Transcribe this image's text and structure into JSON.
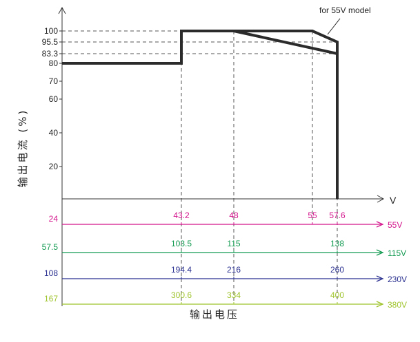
{
  "chart_data": {
    "type": "line",
    "title": "",
    "ylabel": "输出电流 (%)",
    "xlabel": "输出电压",
    "x_unit": "V",
    "yticks": [
      20,
      40,
      60,
      70,
      80,
      83.3,
      95.5,
      100
    ],
    "annotation": "for 55V model",
    "series": [
      {
        "name": "",
        "points": [
          {
            "x": 0,
            "y": 80
          },
          {
            "x": 43.2,
            "y": 80
          },
          {
            "x": 43.2,
            "y": 100
          },
          {
            "x": 55,
            "y": 100
          },
          {
            "x": 57.6,
            "y": 95.5
          },
          {
            "x": 57.6,
            "y": 0
          }
        ]
      },
      {
        "name": "",
        "points": [
          {
            "x": 48,
            "y": 100
          },
          {
            "x": 57.6,
            "y": 83.3
          }
        ]
      }
    ],
    "voltage_scales": [
      {
        "model": "55V",
        "color": "#d4148c",
        "start": "24",
        "ticks": [
          "43.2",
          "48",
          "55",
          "57.6"
        ]
      },
      {
        "model": "115V",
        "color": "#119a50",
        "start": "57.5",
        "ticks": [
          "103.5",
          "115",
          "138"
        ]
      },
      {
        "model": "230V",
        "color": "#2b3190",
        "start": "108",
        "ticks": [
          "194.4",
          "216",
          "260"
        ]
      },
      {
        "model": "380V",
        "color": "#9fc42c",
        "start": "167",
        "ticks": [
          "300.6",
          "334",
          "400"
        ]
      }
    ]
  }
}
